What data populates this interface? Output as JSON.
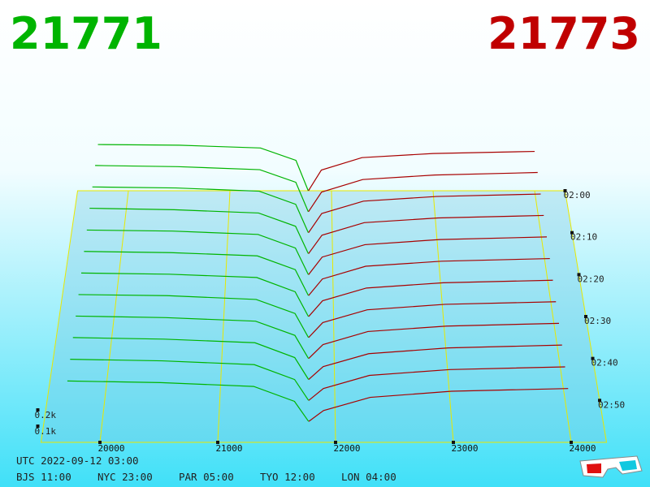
{
  "header": {
    "bid": "21771",
    "ask": "21773"
  },
  "chart_data": {
    "type": "depth3d",
    "price_lim": [
      19500,
      24300
    ],
    "price_ticks": [
      20000,
      21000,
      22000,
      23000,
      24000
    ],
    "time_lim": [
      0,
      60
    ],
    "time_ticks": [
      {
        "value": 0,
        "label": "02:00"
      },
      {
        "value": 10,
        "label": "02:10"
      },
      {
        "value": 20,
        "label": "02:20"
      },
      {
        "value": 30,
        "label": "02:30"
      },
      {
        "value": 40,
        "label": "02:40"
      },
      {
        "value": 50,
        "label": "02:50"
      }
    ],
    "depth_ticks": [
      {
        "value": 100,
        "label": "0.1k"
      },
      {
        "value": 200,
        "label": "0.2k"
      }
    ],
    "bid_color": "#00b400",
    "ask_color": "#a80000",
    "bid_prices": [
      19700,
      20500,
      21300,
      21650,
      21771
    ],
    "ask_prices": [
      21773,
      21900,
      22300,
      23000,
      24000
    ],
    "slices": [
      {
        "t": 0,
        "bids": [
          335,
          330,
          310,
          220,
          0
        ],
        "asks": [
          0,
          150,
          240,
          270,
          285
        ]
      },
      {
        "t": 5,
        "bids": [
          330,
          322,
          300,
          210,
          0
        ],
        "asks": [
          0,
          140,
          230,
          262,
          280
        ]
      },
      {
        "t": 10,
        "bids": [
          322,
          315,
          292,
          200,
          0
        ],
        "asks": [
          0,
          135,
          222,
          255,
          272
        ]
      },
      {
        "t": 15,
        "bids": [
          315,
          305,
          282,
          190,
          0
        ],
        "asks": [
          0,
          128,
          215,
          248,
          265
        ]
      },
      {
        "t": 20,
        "bids": [
          305,
          298,
          275,
          182,
          0
        ],
        "asks": [
          0,
          120,
          205,
          240,
          258
        ]
      },
      {
        "t": 25,
        "bids": [
          298,
          290,
          268,
          175,
          0
        ],
        "asks": [
          0,
          112,
          198,
          232,
          250
        ]
      },
      {
        "t": 30,
        "bids": [
          290,
          282,
          260,
          165,
          0
        ],
        "asks": [
          0,
          105,
          190,
          225,
          242
        ]
      },
      {
        "t": 35,
        "bids": [
          282,
          275,
          250,
          158,
          0
        ],
        "asks": [
          0,
          98,
          182,
          218,
          235
        ]
      },
      {
        "t": 40,
        "bids": [
          275,
          265,
          242,
          150,
          0
        ],
        "asks": [
          0,
          90,
          175,
          210,
          228
        ]
      },
      {
        "t": 45,
        "bids": [
          268,
          258,
          235,
          140,
          0
        ],
        "asks": [
          0,
          82,
          165,
          202,
          220
        ]
      },
      {
        "t": 50,
        "bids": [
          260,
          250,
          226,
          132,
          0
        ],
        "asks": [
          0,
          75,
          158,
          195,
          212
        ]
      },
      {
        "t": 55,
        "bids": [
          252,
          242,
          218,
          125,
          0
        ],
        "asks": [
          0,
          68,
          150,
          188,
          205
        ]
      }
    ]
  },
  "footer": {
    "utc": "UTC 2022-09-12 03:00",
    "zones": [
      "BJS 11:00",
      "NYC 23:00",
      "PAR 05:00",
      "TYO 12:00",
      "LON 04:00"
    ]
  }
}
